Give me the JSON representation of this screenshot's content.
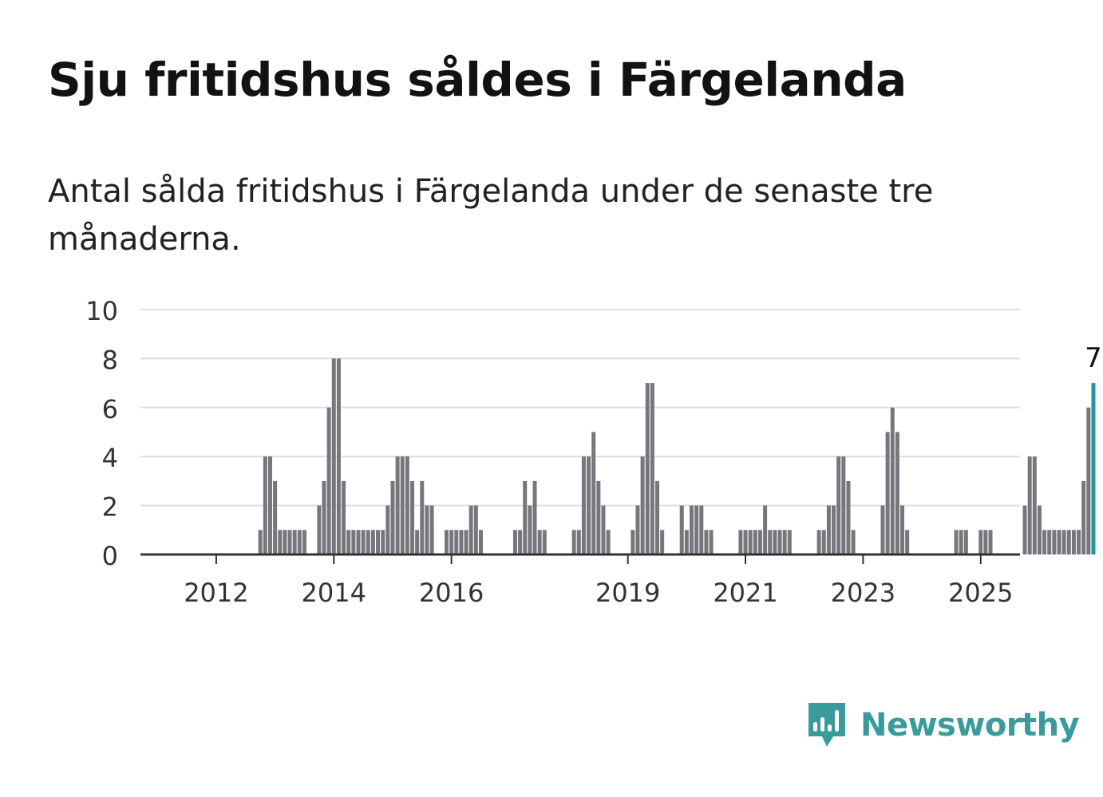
{
  "header": {
    "title": "Sju fritidshus såldes i Färgelanda",
    "subtitle": "Antal sålda fritidshus i Färgelanda under de senaste tre månaderna."
  },
  "brand": {
    "name": "Newsworthy",
    "logo_icon": "newsworthy-chart-bubble-icon"
  },
  "colors": {
    "bar": "#77767c",
    "highlight": "#1a9a98",
    "grid": "#dddddd",
    "axis": "#333333",
    "text": "#333333",
    "brand": "#3a9b9b"
  },
  "chart_data": {
    "type": "bar",
    "x_start": "2011-10",
    "x_unit": "month",
    "ylim": [
      0,
      10
    ],
    "yticks": [
      0,
      2,
      4,
      6,
      8,
      10
    ],
    "xticks": [
      "2012",
      "2014",
      "2016",
      "2019",
      "2021",
      "2023",
      "2025"
    ],
    "grid": true,
    "values": [
      0,
      0,
      0,
      0,
      0,
      0,
      0,
      0,
      0,
      0,
      0,
      0,
      1,
      4,
      4,
      3,
      1,
      1,
      1,
      1,
      1,
      1,
      0,
      0,
      2,
      3,
      6,
      8,
      8,
      3,
      1,
      1,
      1,
      1,
      1,
      1,
      1,
      1,
      2,
      3,
      4,
      4,
      4,
      3,
      1,
      3,
      2,
      2,
      0,
      0,
      1,
      1,
      1,
      1,
      1,
      2,
      2,
      1,
      0,
      0,
      0,
      0,
      0,
      0,
      1,
      1,
      3,
      2,
      3,
      1,
      1,
      0,
      0,
      0,
      0,
      0,
      1,
      1,
      4,
      4,
      5,
      3,
      2,
      1,
      0,
      0,
      0,
      0,
      1,
      2,
      4,
      7,
      7,
      3,
      1,
      0,
      0,
      0,
      2,
      1,
      2,
      2,
      2,
      1,
      1,
      0,
      0,
      0,
      0,
      0,
      1,
      1,
      1,
      1,
      1,
      2,
      1,
      1,
      1,
      1,
      1,
      0,
      0,
      0,
      0,
      0,
      1,
      1,
      2,
      2,
      4,
      4,
      3,
      1,
      0,
      0,
      0,
      0,
      0,
      2,
      5,
      6,
      5,
      2,
      1,
      0,
      0,
      0,
      0,
      0,
      0,
      0,
      0,
      0,
      1,
      1,
      1,
      0,
      0,
      1,
      1,
      1,
      0,
      0,
      0,
      0,
      0,
      0,
      2,
      4,
      4,
      2,
      1,
      1,
      1,
      1,
      1,
      1,
      1,
      1,
      3,
      6,
      7
    ],
    "highlight": {
      "label": "7",
      "value": 7
    }
  }
}
